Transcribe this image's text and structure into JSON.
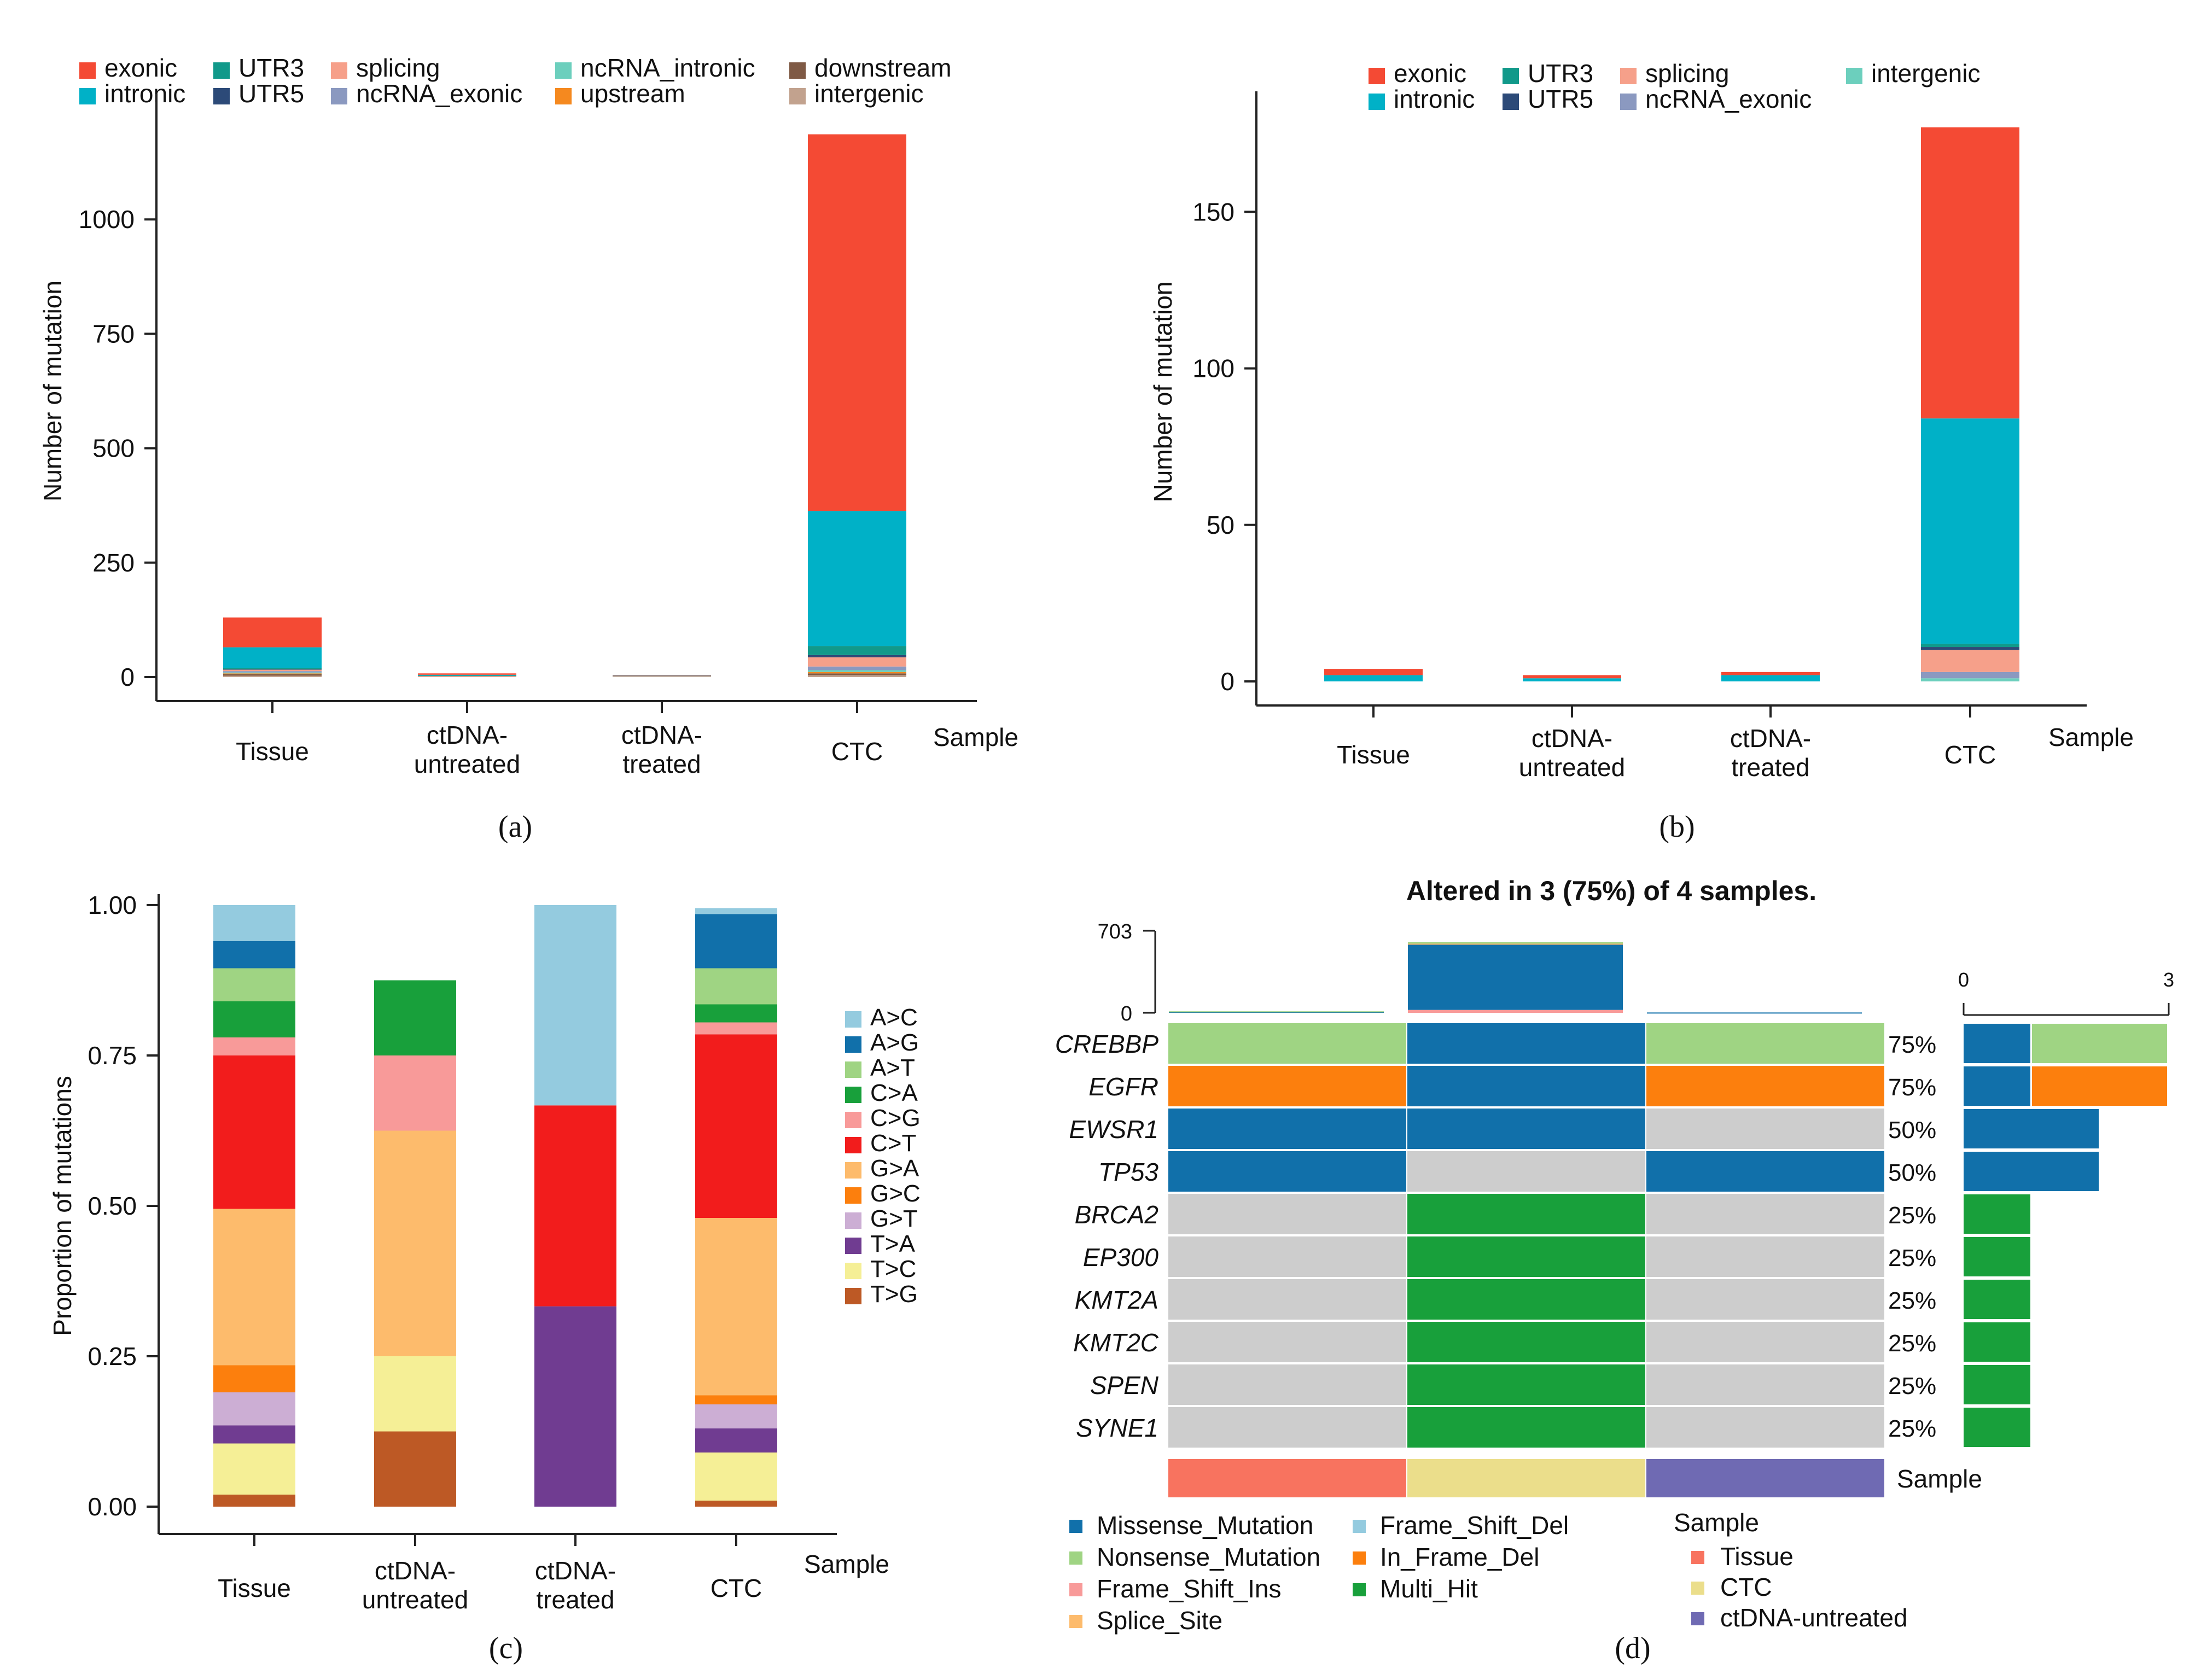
{
  "chart_data": [
    {
      "panel": "a",
      "type": "bar",
      "stacked": true,
      "caption": "(a)",
      "xlabel": "Sample",
      "ylabel": "Number of mutation",
      "ylim": [
        0,
        1250
      ],
      "yticks": [
        0,
        250,
        500,
        750,
        1000
      ],
      "categories": [
        "Tissue",
        "ctDNA-\nuntreated",
        "ctDNA-\ntreated",
        "CTC"
      ],
      "legend": [
        {
          "name": "exonic",
          "color": "#f44a34"
        },
        {
          "name": "intronic",
          "color": "#00b1c7"
        },
        {
          "name": "UTR3",
          "color": "#11998a"
        },
        {
          "name": "UTR5",
          "color": "#2c4a78"
        },
        {
          "name": "splicing",
          "color": "#f6a08a"
        },
        {
          "name": "ncRNA_exonic",
          "color": "#8b99c0"
        },
        {
          "name": "ncRNA_intronic",
          "color": "#6ccfbd"
        },
        {
          "name": "upstream",
          "color": "#f5891f"
        },
        {
          "name": "downstream",
          "color": "#7f5a45"
        },
        {
          "name": "intergenic",
          "color": "#c2a28e"
        }
      ],
      "series": [
        {
          "name": "intergenic",
          "values": [
            3,
            0,
            1,
            4
          ]
        },
        {
          "name": "downstream",
          "values": [
            3,
            0,
            0,
            4
          ]
        },
        {
          "name": "upstream",
          "values": [
            2,
            0,
            0,
            3
          ]
        },
        {
          "name": "ncRNA_intronic",
          "values": [
            2,
            0,
            0,
            4
          ]
        },
        {
          "name": "ncRNA_exonic",
          "values": [
            3,
            0,
            0,
            8
          ]
        },
        {
          "name": "splicing",
          "values": [
            3,
            2,
            1,
            20
          ]
        },
        {
          "name": "UTR5",
          "values": [
            1,
            0,
            0,
            5
          ]
        },
        {
          "name": "UTR3",
          "values": [
            3,
            1,
            0,
            20
          ]
        },
        {
          "name": "intronic",
          "values": [
            45,
            2,
            1,
            295
          ]
        },
        {
          "name": "exonic",
          "values": [
            65,
            3,
            1,
            823
          ]
        }
      ]
    },
    {
      "panel": "b",
      "type": "bar",
      "stacked": true,
      "caption": "(b)",
      "xlabel": "Sample",
      "ylabel": "Number of mutation",
      "ylim": [
        0,
        185
      ],
      "yticks": [
        0,
        50,
        100,
        150
      ],
      "categories": [
        "Tissue",
        "ctDNA-\nuntreated",
        "ctDNA-\ntreated",
        "CTC"
      ],
      "legend": [
        {
          "name": "exonic",
          "color": "#f44a34"
        },
        {
          "name": "intronic",
          "color": "#00b1c7"
        },
        {
          "name": "UTR3",
          "color": "#11998a"
        },
        {
          "name": "UTR5",
          "color": "#2c4a78"
        },
        {
          "name": "splicing",
          "color": "#f6a08a"
        },
        {
          "name": "ncRNA_exonic",
          "color": "#8b99c0"
        },
        {
          "name": "intergenic",
          "color": "#6ccfbd"
        }
      ],
      "series": [
        {
          "name": "intergenic",
          "values": [
            0,
            0,
            0,
            1
          ]
        },
        {
          "name": "ncRNA_exonic",
          "values": [
            0,
            0,
            0,
            2
          ]
        },
        {
          "name": "splicing",
          "values": [
            0,
            0,
            0,
            7
          ]
        },
        {
          "name": "UTR5",
          "values": [
            0,
            0,
            0,
            1
          ]
        },
        {
          "name": "UTR3",
          "values": [
            0,
            0,
            0,
            1
          ]
        },
        {
          "name": "intronic",
          "values": [
            2,
            1,
            2,
            72
          ]
        },
        {
          "name": "exonic",
          "values": [
            2,
            1,
            1,
            93
          ]
        }
      ]
    },
    {
      "panel": "c",
      "type": "bar",
      "stacked": true,
      "caption": "(c)",
      "xlabel": "Sample",
      "ylabel": "Proportion of mutations",
      "ylim": [
        0,
        1
      ],
      "yticks": [
        "0.00",
        "0.25",
        "0.50",
        "0.75",
        "1.00"
      ],
      "categories": [
        "Tissue",
        "ctDNA-\nuntreated",
        "ctDNA-\ntreated",
        "CTC"
      ],
      "legend": [
        {
          "name": "A>C",
          "color": "#94cbdf"
        },
        {
          "name": "A>G",
          "color": "#1170aa"
        },
        {
          "name": "A>T",
          "color": "#9fd483"
        },
        {
          "name": "C>A",
          "color": "#18a03b"
        },
        {
          "name": "C>G",
          "color": "#f89a99"
        },
        {
          "name": "C>T",
          "color": "#f21c1c"
        },
        {
          "name": "G>A",
          "color": "#fdbb6c"
        },
        {
          "name": "G>C",
          "color": "#fc7f0d"
        },
        {
          "name": "G>T",
          "color": "#ccaed4"
        },
        {
          "name": "T>A",
          "color": "#703c91"
        },
        {
          "name": "T>C",
          "color": "#f5ef96"
        },
        {
          "name": "T>G",
          "color": "#bd5925"
        }
      ],
      "series": [
        {
          "name": "T>G",
          "values": [
            0.02,
            0.125,
            0,
            0.01
          ]
        },
        {
          "name": "T>C",
          "values": [
            0.085,
            0.125,
            0,
            0.08
          ]
        },
        {
          "name": "T>A",
          "values": [
            0.03,
            0,
            0.333,
            0.04
          ]
        },
        {
          "name": "G>T",
          "values": [
            0.055,
            0,
            0,
            0.04
          ]
        },
        {
          "name": "G>C",
          "values": [
            0.045,
            0,
            0,
            0.015
          ]
        },
        {
          "name": "G>A",
          "values": [
            0.26,
            0.375,
            0,
            0.295
          ]
        },
        {
          "name": "C>T",
          "values": [
            0.255,
            0,
            0.334,
            0.305
          ]
        },
        {
          "name": "C>G",
          "values": [
            0.03,
            0.125,
            0,
            0.02
          ]
        },
        {
          "name": "C>A",
          "values": [
            0.06,
            0.125,
            0,
            0.03
          ]
        },
        {
          "name": "A>T",
          "values": [
            0.055,
            0,
            0,
            0.06
          ]
        },
        {
          "name": "A>G",
          "values": [
            0.045,
            0,
            0,
            0.09
          ]
        },
        {
          "name": "A>C",
          "values": [
            0.06,
            0,
            0.333,
            0.01
          ]
        }
      ]
    },
    {
      "panel": "d",
      "type": "heatmap",
      "caption": "(d)",
      "title": "Altered in 3 (75%) of 4 samples.",
      "top_axis": {
        "max_label": "703",
        "zero_label": "0",
        "max": 703
      },
      "right_axis": {
        "zero_label": "0",
        "max_label": "3",
        "max": 3
      },
      "samples": [
        "Tissue",
        "CTC",
        "ctDNA-untreated"
      ],
      "sample_colors": [
        "#f8735f",
        "#ebde8b",
        "#6f6ab3"
      ],
      "sample_totals": [
        {
          "Missense_Mutation": 10,
          "Nonsense_Mutation": 3
        },
        {
          "Frame_Shift_Ins": 25,
          "Missense_Mutation": 560,
          "Nonsense_Mutation": 12,
          "Splice_Site": 8
        },
        {
          "Missense_Mutation": 3
        }
      ],
      "genes": [
        "CREBBP",
        "EGFR",
        "EWSR1",
        "TP53",
        "BRCA2",
        "EP300",
        "KMT2A",
        "KMT2C",
        "SPEN",
        "SYNE1"
      ],
      "percents": [
        "75%",
        "75%",
        "50%",
        "50%",
        "25%",
        "25%",
        "25%",
        "25%",
        "25%",
        "25%"
      ],
      "matrix": [
        [
          "Nonsense_Mutation",
          "Missense_Mutation",
          "Nonsense_Mutation"
        ],
        [
          "In_Frame_Del",
          "Missense_Mutation",
          "In_Frame_Del"
        ],
        [
          "Missense_Mutation",
          "Missense_Mutation",
          ""
        ],
        [
          "Missense_Mutation",
          "",
          "Missense_Mutation"
        ],
        [
          "",
          "Multi_Hit",
          ""
        ],
        [
          "",
          "Multi_Hit",
          ""
        ],
        [
          "",
          "Multi_Hit",
          ""
        ],
        [
          "",
          "Multi_Hit",
          ""
        ],
        [
          "",
          "Multi_Hit",
          ""
        ],
        [
          "",
          "Multi_Hit",
          ""
        ]
      ],
      "gene_counts": [
        {
          "Missense_Mutation": 1,
          "Nonsense_Mutation": 2
        },
        {
          "Missense_Mutation": 1,
          "In_Frame_Del": 2
        },
        {
          "Missense_Mutation": 2
        },
        {
          "Missense_Mutation": 2
        },
        {
          "Multi_Hit": 1
        },
        {
          "Multi_Hit": 1
        },
        {
          "Multi_Hit": 1
        },
        {
          "Multi_Hit": 1
        },
        {
          "Multi_Hit": 1
        },
        {
          "Multi_Hit": 1
        }
      ],
      "empty_color": "#cdcdcd",
      "sample_track_label": "Sample",
      "legend_variants": [
        {
          "name": "Missense_Mutation",
          "color": "#1170aa"
        },
        {
          "name": "Nonsense_Mutation",
          "color": "#9fd483"
        },
        {
          "name": "Frame_Shift_Ins",
          "color": "#f89a99"
        },
        {
          "name": "Splice_Site",
          "color": "#fdbb6c"
        },
        {
          "name": "Frame_Shift_Del",
          "color": "#94cbdf"
        },
        {
          "name": "In_Frame_Del",
          "color": "#fc7f0d"
        },
        {
          "name": "Multi_Hit",
          "color": "#18a03b"
        }
      ],
      "legend_sample_title": "Sample"
    }
  ]
}
